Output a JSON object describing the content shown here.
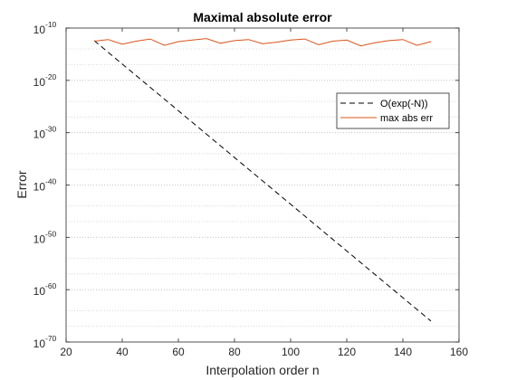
{
  "chart_data": {
    "type": "line",
    "title": "Maximal absolute error",
    "xlabel": "Interpolation order n",
    "ylabel": "Error",
    "xlim": [
      20,
      160
    ],
    "ylim_log10": [
      -70,
      -10
    ],
    "yscale": "log",
    "grid": "y-major-and-minor-dotted",
    "legend_placement": "upper-right",
    "xticks": [
      {
        "value": 20,
        "label": "20"
      },
      {
        "value": 40,
        "label": "40"
      },
      {
        "value": 60,
        "label": "60"
      },
      {
        "value": 80,
        "label": "80"
      },
      {
        "value": 100,
        "label": "100"
      },
      {
        "value": 120,
        "label": "120"
      },
      {
        "value": 140,
        "label": "140"
      },
      {
        "value": 160,
        "label": "160"
      }
    ],
    "yticks": [
      {
        "exp": -10,
        "base": "10",
        "sup": "-10"
      },
      {
        "exp": -20,
        "base": "10",
        "sup": "-20"
      },
      {
        "exp": -30,
        "base": "10",
        "sup": "-30"
      },
      {
        "exp": -40,
        "base": "10",
        "sup": "-40"
      },
      {
        "exp": -50,
        "base": "10",
        "sup": "-50"
      },
      {
        "exp": -60,
        "base": "10",
        "sup": "-60"
      },
      {
        "exp": -70,
        "base": "10",
        "sup": "-70"
      }
    ],
    "series": [
      {
        "name": "O(exp(-N))",
        "style": "dashed",
        "color": "#000000",
        "x": [
          30,
          150
        ],
        "log10_y": [
          -12.4,
          -66.0
        ]
      },
      {
        "name": "max abs err",
        "style": "solid",
        "color": "#d95319",
        "x": [
          30,
          35,
          40,
          45,
          50,
          55,
          60,
          65,
          70,
          75,
          80,
          85,
          90,
          95,
          100,
          105,
          110,
          115,
          120,
          125,
          130,
          135,
          140,
          145,
          150
        ],
        "log10_y": [
          -12.5,
          -12.2,
          -13.1,
          -12.5,
          -12.1,
          -13.3,
          -12.6,
          -12.3,
          -12.0,
          -12.9,
          -12.4,
          -12.2,
          -13.0,
          -12.7,
          -12.3,
          -12.1,
          -13.2,
          -12.5,
          -12.3,
          -13.4,
          -12.8,
          -12.4,
          -12.2,
          -13.3,
          -12.6
        ]
      }
    ]
  }
}
